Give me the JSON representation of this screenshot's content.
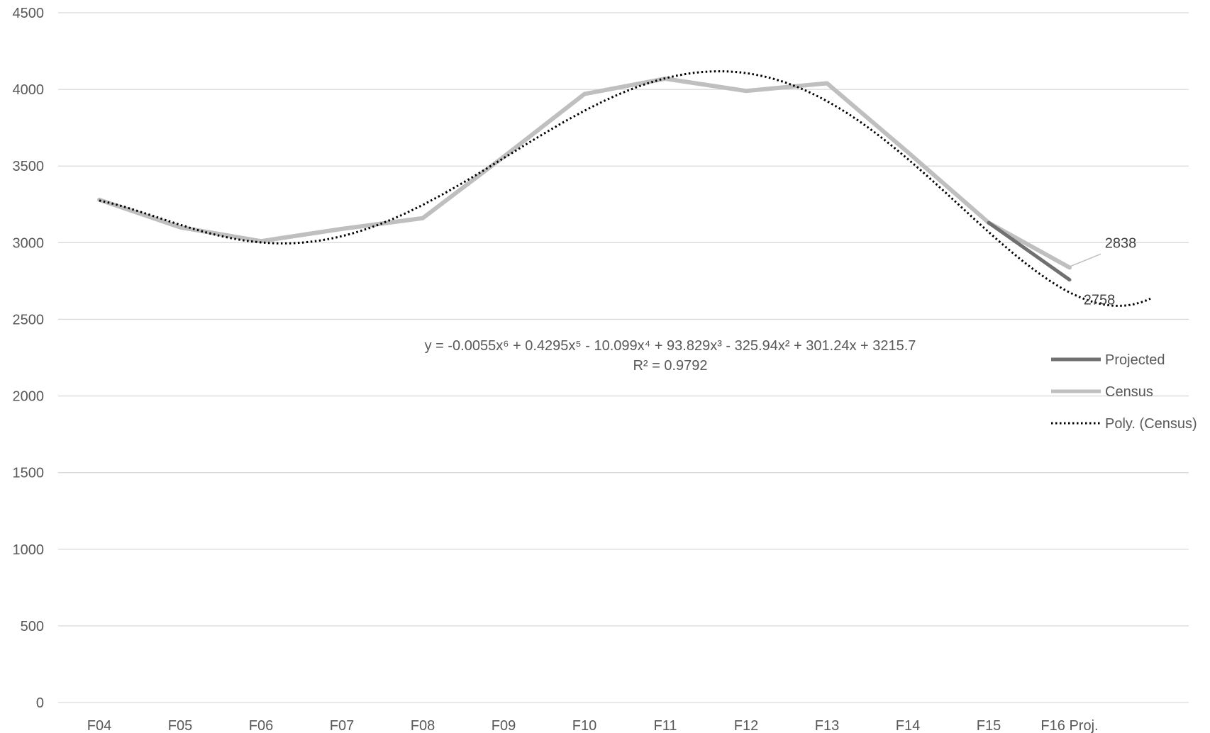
{
  "chart_data": {
    "type": "line",
    "title": "",
    "xlabel": "",
    "ylabel": "",
    "categories": [
      "F04",
      "F05",
      "F06",
      "F07",
      "F08",
      "F09",
      "F10",
      "F11",
      "F12",
      "F13",
      "F14",
      "F15",
      "F16 Proj."
    ],
    "ylim": [
      0,
      4500
    ],
    "yticks": [
      0,
      500,
      1000,
      1500,
      2000,
      2500,
      3000,
      3500,
      4000,
      4500
    ],
    "grid": true,
    "legend_position": "right",
    "series": [
      {
        "name": "Projected",
        "color": "#707070",
        "values": [
          null,
          null,
          null,
          null,
          null,
          null,
          null,
          null,
          null,
          null,
          null,
          3130,
          2758
        ]
      },
      {
        "name": "Census",
        "color": "#bfbfbf",
        "values": [
          3280,
          3100,
          3010,
          3090,
          3160,
          3560,
          3970,
          4070,
          3990,
          4040,
          3590,
          3130,
          2838
        ]
      }
    ],
    "trendline": {
      "name": "Poly. (Census)",
      "color": "#000000",
      "coefficients": [
        3215.7,
        301.24,
        -325.94,
        93.829,
        -10.099,
        0.4295,
        -0.0055
      ],
      "x_range": [
        1,
        14
      ],
      "equation_label": "y = -0.0055x⁶ + 0.4295x⁵ - 10.099x⁴ + 93.829x³ - 325.94x² + 301.24x + 3215.7",
      "r2_label": "R² = 0.9792"
    },
    "data_labels": [
      {
        "series": "Census",
        "category": "F16 Proj.",
        "text": "2838"
      },
      {
        "series": "Projected",
        "category": "F16 Proj.",
        "text": "2758"
      }
    ]
  }
}
